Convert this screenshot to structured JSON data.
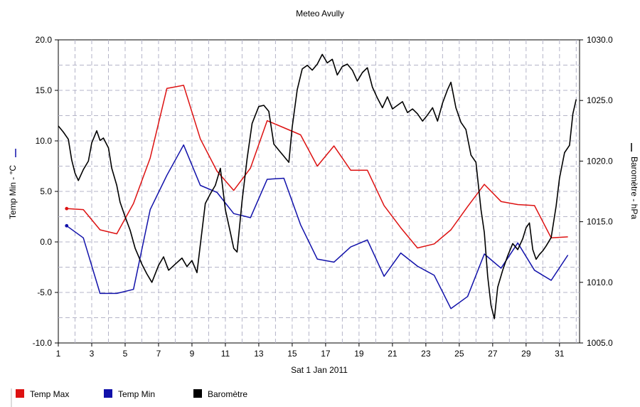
{
  "chart_data": {
    "type": "line",
    "title": "Meteo  Avully",
    "xlabel": "Sat 1 Jan 2011",
    "ylabel_left": "Temp Min - °C",
    "ylabel_right": "Baromètre - hPa",
    "xlim": [
      1,
      32.2
    ],
    "ylim_left": [
      -10,
      20
    ],
    "ylim_right": [
      1005,
      1030
    ],
    "x_ticks": [
      1,
      3,
      5,
      7,
      9,
      11,
      13,
      15,
      17,
      19,
      21,
      23,
      25,
      27,
      29,
      31
    ],
    "x_tick_labels": [
      "1",
      "3",
      "5",
      "7",
      "9",
      "11",
      "13",
      "15",
      "17",
      "19",
      "21",
      "23",
      "25",
      "27",
      "29",
      "31"
    ],
    "y_ticks_left": [
      -10,
      -5,
      0,
      5,
      10,
      15,
      20
    ],
    "y_tick_labels_left": [
      "-10.0",
      "-5.0",
      "0.0",
      "5.0",
      "10.0",
      "15.0",
      "20.0"
    ],
    "y_ticks_right": [
      1005,
      1010,
      1015,
      1020,
      1025,
      1030
    ],
    "y_tick_labels_right": [
      "1005.0",
      "1010.0",
      "1015.0",
      "1020.0",
      "1025.0",
      "1030.0"
    ],
    "grid": true,
    "legend_position": "bottom",
    "series": [
      {
        "name": "Temp Max",
        "color": "#dd1111",
        "axis": "left",
        "x": [
          1.5,
          2.5,
          3.5,
          4.5,
          5.5,
          6.5,
          7.5,
          8.5,
          9.5,
          10.5,
          11.5,
          12.5,
          13.5,
          14.5,
          15.5,
          16.5,
          17.5,
          18.5,
          19.5,
          20.5,
          21.5,
          22.5,
          23.5,
          24.5,
          25.5,
          26.5,
          27.5,
          28.5,
          29.5,
          30.5,
          31.5
        ],
        "y": [
          3.3,
          3.2,
          1.2,
          0.8,
          3.8,
          8.3,
          15.2,
          15.5,
          10.2,
          7.0,
          5.1,
          7.3,
          12.0,
          11.3,
          10.6,
          7.5,
          9.5,
          7.1,
          7.1,
          3.6,
          1.4,
          -0.6,
          -0.2,
          1.2,
          3.5,
          5.7,
          4.0,
          3.7,
          3.6,
          0.4,
          0.5
        ]
      },
      {
        "name": "Temp Min",
        "color": "#1111aa",
        "axis": "left",
        "x": [
          1.5,
          2.5,
          3.5,
          4.5,
          5.5,
          6.5,
          7.5,
          8.5,
          9.5,
          10.5,
          11.5,
          12.5,
          13.5,
          14.5,
          15.5,
          16.5,
          17.5,
          18.5,
          19.5,
          20.5,
          21.5,
          22.5,
          23.5,
          24.5,
          25.5,
          26.5,
          27.5,
          28.5,
          29.5,
          30.5,
          31.5
        ],
        "y": [
          1.6,
          0.4,
          -5.1,
          -5.1,
          -4.7,
          3.2,
          6.6,
          9.6,
          5.6,
          4.9,
          2.8,
          2.4,
          6.2,
          6.3,
          1.7,
          -1.7,
          -2.0,
          -0.5,
          0.2,
          -3.4,
          -1.1,
          -2.4,
          -3.3,
          -6.6,
          -5.4,
          -1.2,
          -2.6,
          -0.1,
          -2.8,
          -3.8,
          -1.3
        ]
      },
      {
        "name": "Baromètre",
        "color": "#000000",
        "axis": "right",
        "x": [
          1.0,
          1.3,
          1.6,
          1.8,
          2.0,
          2.2,
          2.5,
          2.8,
          3.0,
          3.3,
          3.5,
          3.7,
          4.0,
          4.2,
          4.5,
          4.7,
          5.0,
          5.3,
          5.6,
          6.0,
          6.3,
          6.6,
          7.0,
          7.3,
          7.6,
          8.0,
          8.4,
          8.7,
          9.0,
          9.3,
          9.5,
          9.8,
          10.1,
          10.4,
          10.7,
          11.0,
          11.3,
          11.5,
          11.7,
          12.0,
          12.3,
          12.6,
          13.0,
          13.3,
          13.6,
          13.9,
          14.2,
          14.5,
          14.8,
          15.0,
          15.3,
          15.6,
          15.9,
          16.2,
          16.5,
          16.8,
          17.1,
          17.4,
          17.7,
          18.0,
          18.3,
          18.6,
          18.9,
          19.2,
          19.5,
          19.8,
          20.1,
          20.4,
          20.7,
          21.0,
          21.3,
          21.6,
          21.9,
          22.2,
          22.5,
          22.8,
          23.1,
          23.4,
          23.7,
          24.0,
          24.3,
          24.5,
          24.8,
          25.1,
          25.4,
          25.7,
          26.0,
          26.3,
          26.5,
          26.7,
          26.9,
          27.1,
          27.3,
          27.6,
          27.9,
          28.2,
          28.5,
          28.8,
          29.0,
          29.2,
          29.4,
          29.6,
          29.8,
          30.0,
          30.2,
          30.5,
          30.8,
          31.0,
          31.3,
          31.6,
          31.8,
          32.0
        ],
        "y": [
          1022.9,
          1022.4,
          1021.8,
          1020.1,
          1019.0,
          1018.4,
          1019.3,
          1020.0,
          1021.5,
          1022.5,
          1021.7,
          1021.9,
          1021.1,
          1019.4,
          1018.0,
          1016.6,
          1015.4,
          1014.3,
          1012.8,
          1011.5,
          1010.7,
          1010.0,
          1011.4,
          1012.1,
          1011.0,
          1011.5,
          1012.0,
          1011.3,
          1011.8,
          1010.8,
          1013.1,
          1016.5,
          1017.3,
          1018.0,
          1019.4,
          1016.0,
          1014.1,
          1012.8,
          1012.5,
          1016.7,
          1020.2,
          1023.1,
          1024.5,
          1024.6,
          1024.1,
          1021.4,
          1020.9,
          1020.4,
          1019.9,
          1022.8,
          1025.9,
          1027.6,
          1027.9,
          1027.5,
          1028.0,
          1028.8,
          1028.1,
          1028.4,
          1027.1,
          1027.8,
          1028.0,
          1027.5,
          1026.6,
          1027.3,
          1027.7,
          1026.1,
          1025.2,
          1024.4,
          1025.3,
          1024.3,
          1024.6,
          1024.9,
          1024.0,
          1024.3,
          1023.9,
          1023.3,
          1023.8,
          1024.4,
          1023.3,
          1024.8,
          1025.9,
          1026.5,
          1024.4,
          1023.2,
          1022.6,
          1020.5,
          1019.9,
          1016.0,
          1014.1,
          1010.5,
          1008.1,
          1007.0,
          1009.6,
          1011.0,
          1012.2,
          1013.2,
          1012.7,
          1013.6,
          1014.5,
          1014.9,
          1012.7,
          1011.9,
          1012.3,
          1012.6,
          1013.0,
          1013.7,
          1016.3,
          1018.6,
          1020.7,
          1021.3,
          1023.9,
          1025.1
        ]
      }
    ]
  }
}
